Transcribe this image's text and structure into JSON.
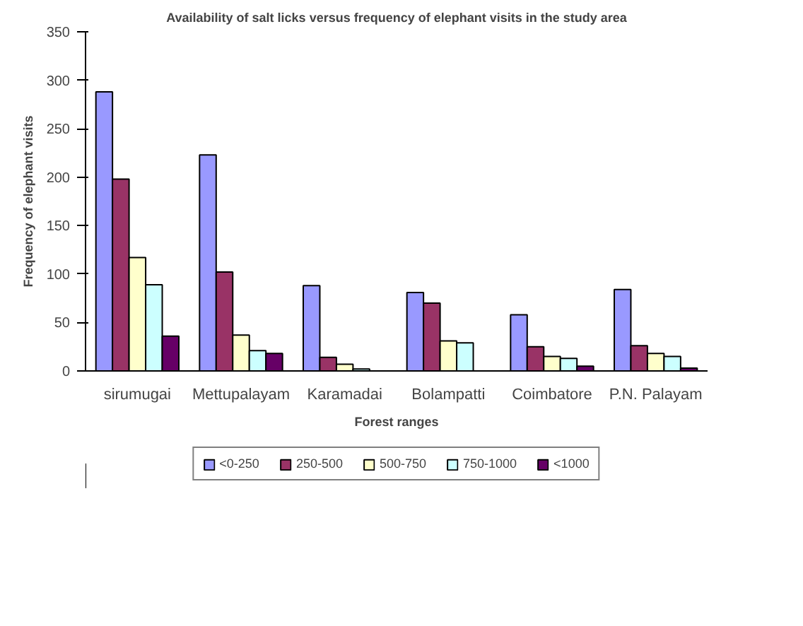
{
  "chart_data": {
    "type": "bar",
    "title": "Availability of salt licks versus frequency of elephant visits in the study area",
    "xlabel": "Forest ranges",
    "ylabel": "Frequency of elephant visits",
    "categories": [
      "sirumugai",
      "Mettupalayam",
      "Karamadai",
      "Bolampatti",
      "Coimbatore",
      "P.N. Palayam"
    ],
    "series": [
      {
        "name": "<0-250",
        "color": "#9999ff",
        "values": [
          288,
          223,
          88,
          81,
          58,
          84
        ]
      },
      {
        "name": "250-500",
        "color": "#993366",
        "values": [
          198,
          102,
          14,
          70,
          25,
          26
        ]
      },
      {
        "name": "500-750",
        "color": "#ffffcc",
        "values": [
          117,
          37,
          7,
          31,
          15,
          18
        ]
      },
      {
        "name": "750-1000",
        "color": "#ccffff",
        "values": [
          89,
          21,
          2,
          29,
          13,
          15
        ]
      },
      {
        "name": "<1000",
        "color": "#660066",
        "values": [
          36,
          18,
          null,
          null,
          5,
          3
        ]
      }
    ],
    "ylim": [
      0,
      350
    ],
    "yticks": [
      0,
      50,
      100,
      150,
      200,
      250,
      300,
      350
    ],
    "grid": false,
    "legend": "bottom"
  }
}
